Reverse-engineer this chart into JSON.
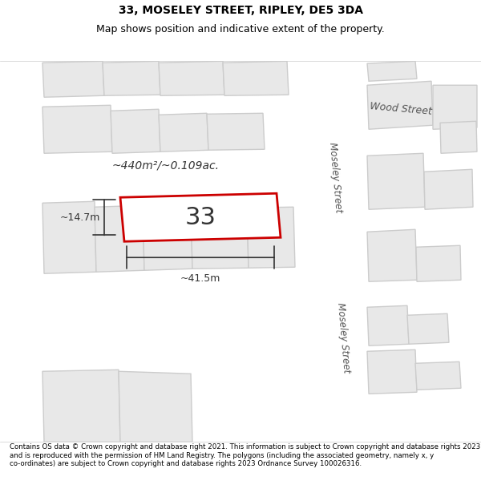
{
  "title_line1": "33, MOSELEY STREET, RIPLEY, DE5 3DA",
  "title_line2": "Map shows position and indicative extent of the property.",
  "footer_text": "Contains OS data © Crown copyright and database right 2021. This information is subject to Crown copyright and database rights 2023 and is reproduced with the permission of HM Land Registry. The polygons (including the associated geometry, namely x, y co-ordinates) are subject to Crown copyright and database rights 2023 Ordnance Survey 100026316.",
  "background_color": "#f5f5f5",
  "map_background": "#f0eeea",
  "road_color": "#ffffff",
  "building_outline_color": "#cccccc",
  "building_fill_color": "#e8e8e8",
  "highlight_outline_color": "#cc0000",
  "highlight_fill_color": "#ffffff",
  "area_text": "~440m²/~0.109ac.",
  "width_text": "~41.5m",
  "height_text": "~14.7m",
  "label_33": "33",
  "street_label_top": "Wood Street",
  "street_label_mid": "Moseley Street",
  "street_label_bot": "Moseley Street"
}
